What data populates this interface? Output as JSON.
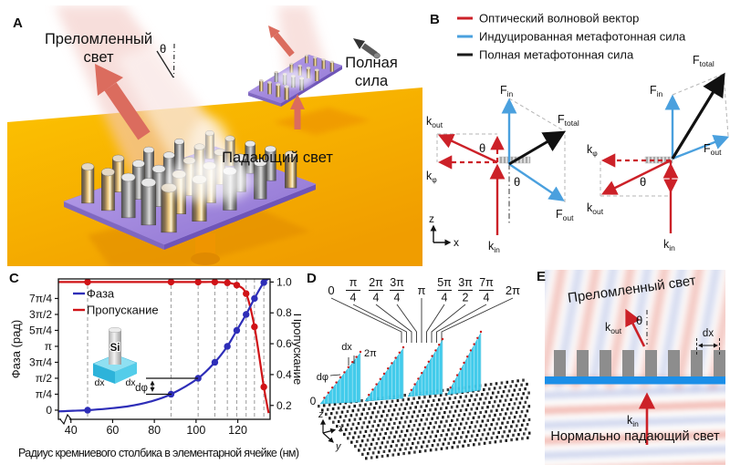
{
  "panels": {
    "a": {
      "label": "A",
      "refracted_light_lines": [
        "Преломленный",
        "свет"
      ],
      "theta": "θ",
      "total_force_lines": [
        "Полная",
        "сила"
      ],
      "incident_light": "Падающий свет",
      "colors": {
        "ground": "#f7ad00",
        "metasurface": "#a288d8",
        "light_arrow": "#db6c5e"
      }
    },
    "b": {
      "label": "B",
      "legend": [
        {
          "label": "Оптический волновой вектор",
          "color": "#cc2128"
        },
        {
          "label": "Индуцированная метафотонная сила",
          "color": "#4aa0de"
        },
        {
          "label": "Полная метафотонная сила",
          "color": "#1a1a1a"
        }
      ],
      "sym": {
        "F": "F",
        "k": "k",
        "in": "in",
        "out": "out",
        "total": "total",
        "phi": "φ",
        "theta": "θ",
        "z": "z",
        "x": "x"
      }
    },
    "c": {
      "label": "C",
      "inset": {
        "material": "Si",
        "dx": "dx"
      },
      "dphi": "dφ",
      "chart_data": {
        "type": "line",
        "xlabel": "Радиус кремниевого столбика в элементарной ячейке (нм)",
        "ylabel_left": "Фаза (рад)",
        "ylabel_right": "Пропускание",
        "x_range": [
          34,
          135.5
        ],
        "x_ticks": [
          40,
          60,
          80,
          100,
          120
        ],
        "left_axis": {
          "color": "#3a3ab8",
          "range_rad": [
            -0.45,
            6.46
          ],
          "tick_labels": [
            "0",
            "π/4",
            "π/2",
            "3π/4",
            "π",
            "5π/4",
            "3π/2",
            "7π/4"
          ],
          "tick_values": [
            0,
            0.7854,
            1.5708,
            2.3562,
            3.1416,
            3.927,
            4.7124,
            5.4978
          ]
        },
        "right_axis": {
          "color": "#c01015",
          "range": [
            0.11,
            1.02
          ],
          "tick_labels": [
            "0.2",
            "0.4",
            "0.6",
            "0.8",
            "1.0"
          ],
          "tick_values": [
            0.2,
            0.4,
            0.6,
            0.8,
            1.0
          ]
        },
        "dashed_guides_x": [
          48,
          88,
          101,
          109,
          115,
          119.5,
          124,
          128,
          132.5
        ],
        "series": [
          {
            "name": "Фаза",
            "axis": "left",
            "color": "#2e2eb8",
            "points_x": [
              48,
              88,
              101,
              109,
              115,
              119.5,
              124,
              128,
              132.5
            ],
            "points_y": [
              0,
              0.7854,
              1.5708,
              2.3562,
              3.1416,
              3.927,
              4.7124,
              5.4978,
              6.2832
            ],
            "curve_x": [
              34,
              41,
              48,
              58,
              68,
              78,
              88,
              101,
              109,
              115,
              119.5,
              124,
              128,
              132.5,
              135.5
            ],
            "curve_y": [
              -0.06,
              -0.03,
              0,
              0.08,
              0.2,
              0.42,
              0.7854,
              1.5708,
              2.3562,
              3.1416,
              3.927,
              4.7124,
              5.4978,
              6.2832,
              6.5
            ]
          },
          {
            "name": "Пропускание",
            "axis": "right",
            "color": "#d01317",
            "points_x": [
              48,
              88,
              101,
              109,
              115,
              119.5,
              124,
              128,
              132.5
            ],
            "points_y": [
              1.0,
              1.0,
              1.0,
              1.0,
              0.995,
              0.98,
              0.925,
              0.71,
              0.32
            ],
            "curve_x": [
              34,
              48,
              88,
              101,
              109,
              115,
              119.5,
              124,
              128,
              132.5,
              134.8
            ],
            "curve_y": [
              1.0,
              1.0,
              1.0,
              1.0,
              1.0,
              0.995,
              0.98,
              0.925,
              0.71,
              0.32,
              0.15
            ]
          }
        ]
      }
    },
    "d": {
      "label": "D",
      "phase_labels": [
        "0",
        "π|4",
        "2π|4",
        "3π|4",
        "π",
        "5π|4",
        "3π|2",
        "7π|4",
        "2π"
      ],
      "labels": {
        "dx": "dx",
        "two_pi": "2π",
        "dphi": "dφ",
        "zero": "0",
        "z": "z",
        "x": "x",
        "y": "y"
      },
      "ramp_color": "#38c9ea",
      "num_ramps": 4
    },
    "e": {
      "label": "E",
      "top_text": "Преломленный свет",
      "bottom_text": "Нормально падающий свет",
      "theta": "θ",
      "dx": "dx",
      "sym": {
        "k": "k",
        "in": "in",
        "out": "out"
      },
      "colors": {
        "substrate": "#1b8fe8",
        "pillar": "#8d8d8d"
      }
    }
  }
}
